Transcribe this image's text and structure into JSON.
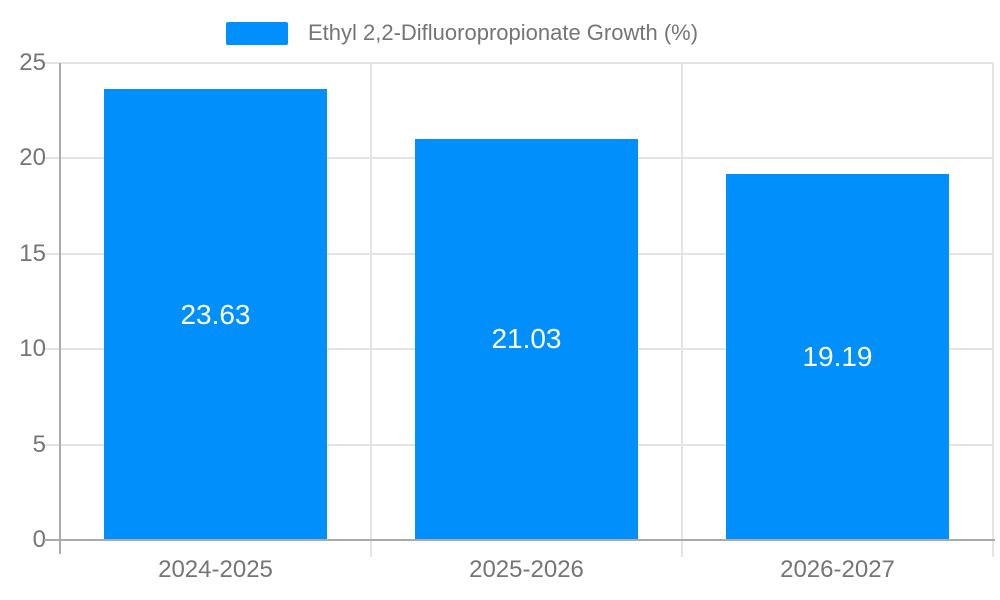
{
  "legend": {
    "label": "Ethyl 2,2-Difluoropropionate Growth (%)"
  },
  "chart_data": {
    "type": "bar",
    "categories": [
      "2024-2025",
      "2025-2026",
      "2026-2027"
    ],
    "series": [
      {
        "name": "Ethyl 2,2-Difluoropropionate Growth (%)",
        "values": [
          23.63,
          21.03,
          19.19
        ]
      }
    ],
    "data_labels": [
      "23.63",
      "21.03",
      "19.19"
    ],
    "title": "",
    "xlabel": "",
    "ylabel": "",
    "ylim": [
      0,
      25
    ],
    "yticks": [
      0,
      5,
      10,
      15,
      20,
      25
    ],
    "grid": true,
    "legend_position": "top",
    "legend_entries": [
      "Ethyl 2,2-Difluoropropionate Growth (%)"
    ]
  },
  "colors": {
    "bar": "#008FFB",
    "grid": "#e4e4e4",
    "axis": "#ababab",
    "tick_label": "#757575",
    "legend_text": "#757575",
    "data_label": "#ffffff",
    "background": "#ffffff"
  }
}
